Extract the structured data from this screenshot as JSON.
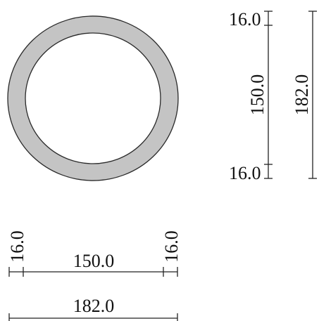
{
  "section": {
    "shape": "circular-ring",
    "outer_diameter": 182.0,
    "inner_diameter": 150.0,
    "wall_thickness": 16.0,
    "ring_fill": "#c4c4c4",
    "outline": "#2a2a2a"
  },
  "dimensions": {
    "right_top_wall": "16.0",
    "right_inner": "150.0",
    "right_bottom_wall": "16.0",
    "right_outer": "182.0",
    "bottom_left_wall": "16.0",
    "bottom_inner": "150.0",
    "bottom_right_wall": "16.0",
    "bottom_outer": "182.0"
  }
}
